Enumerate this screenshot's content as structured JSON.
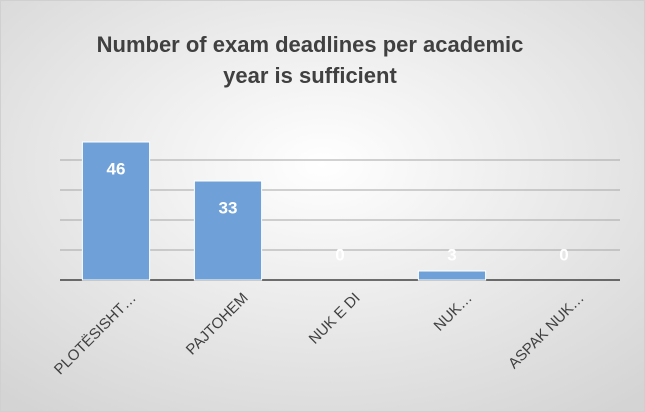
{
  "chart_data": {
    "type": "bar",
    "title": [
      "Number of exam deadlines per academic",
      "year is sufficient"
    ],
    "categories": [
      "PLOTËSISHT…",
      "PAJTOHEM",
      "NUK E DI",
      "NUK…",
      "ASPAK NUK…"
    ],
    "values": [
      46,
      33,
      0,
      3,
      0
    ],
    "color": "#6fa1d8",
    "ylim": [
      0,
      50
    ],
    "yticks": [
      0,
      10,
      20,
      30,
      40
    ],
    "grid": true
  }
}
